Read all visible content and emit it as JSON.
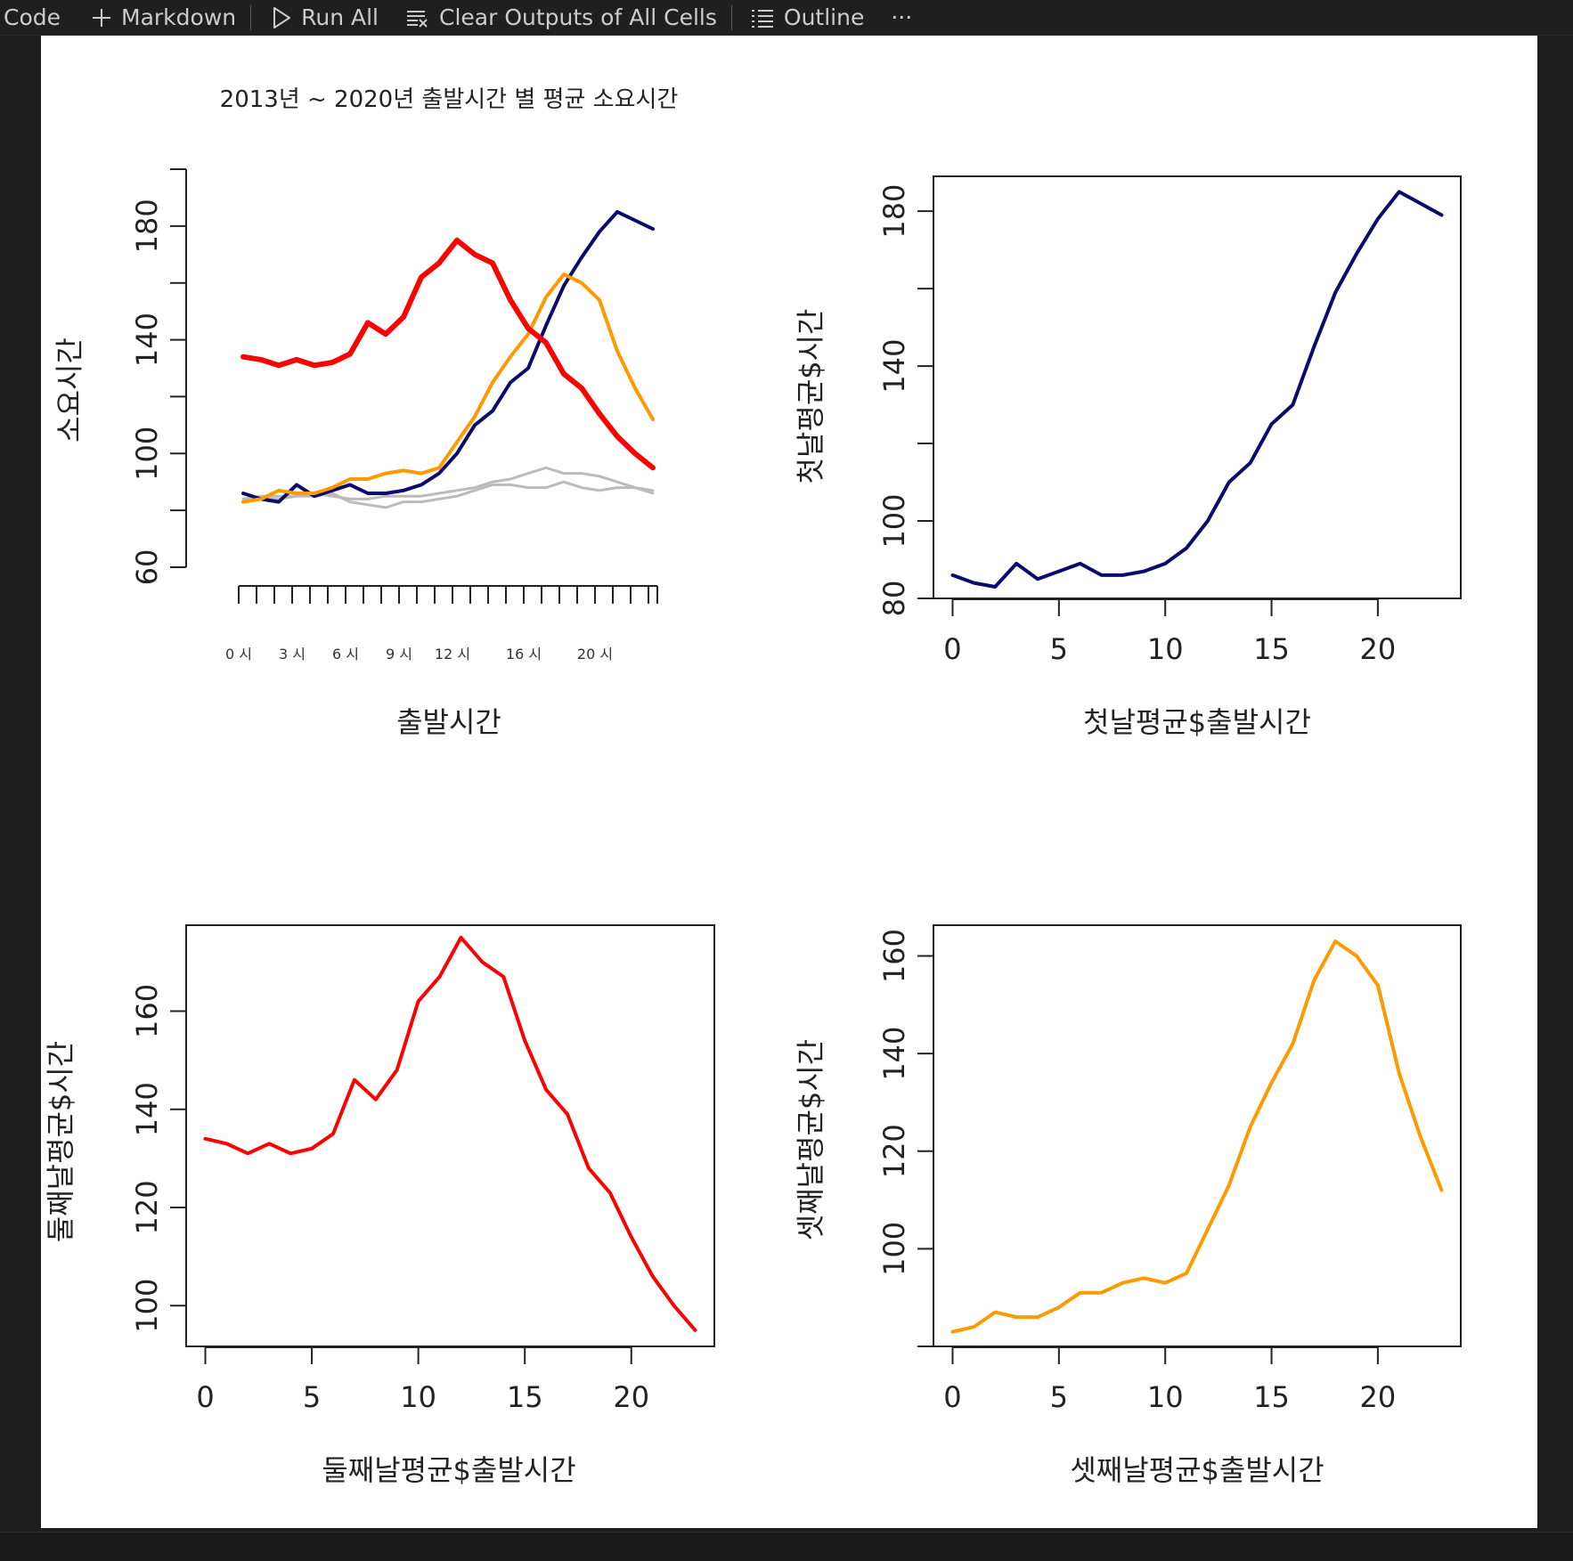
{
  "toolbar": {
    "code_label": "Code",
    "markdown_label": "Markdown",
    "run_all_label": "Run All",
    "clear_outputs_label": "Clear Outputs of All Cells",
    "outline_label": "Outline",
    "more_label": "···",
    "icons": [
      "plus-icon",
      "play-icon",
      "clear-outputs-icon",
      "outline-list-icon",
      "ellipsis-icon"
    ]
  },
  "colors": {
    "navy": "#0a0a6e",
    "red": "#ff0000",
    "orange": "#ff9900",
    "gray": "#bbbbbb"
  },
  "chart_data": [
    {
      "type": "line",
      "title": "2013년 ~ 2020년 출발시간 별 평균 소요시간",
      "xlabel": "출발시간",
      "ylabel": "소요시간",
      "x": [
        0,
        1,
        2,
        3,
        4,
        5,
        6,
        7,
        8,
        9,
        10,
        11,
        12,
        13,
        14,
        15,
        16,
        17,
        18,
        19,
        20,
        21,
        22,
        23
      ],
      "x_tick_labels": [
        {
          "x": 0,
          "label": "0 시"
        },
        {
          "x": 3,
          "label": "3 시"
        },
        {
          "x": 6,
          "label": "6 시"
        },
        {
          "x": 9,
          "label": "9 시"
        },
        {
          "x": 12,
          "label": "12 시"
        },
        {
          "x": 16,
          "label": "16 시"
        },
        {
          "x": 20,
          "label": "20 시"
        }
      ],
      "ylim": [
        60,
        200
      ],
      "y_ticks": [
        60,
        100,
        140,
        180
      ],
      "series": [
        {
          "values": [
            86,
            84,
            83,
            89,
            85,
            87,
            89,
            86,
            86,
            87,
            89,
            93,
            100,
            110,
            115,
            125,
            130,
            145,
            159,
            169,
            178,
            185,
            182,
            179
          ],
          "color": "#0a0a6e",
          "width": 4
        },
        {
          "values": [
            134,
            133,
            131,
            133,
            131,
            132,
            135,
            146,
            142,
            148,
            162,
            167,
            175,
            170,
            167,
            154,
            144,
            139,
            128,
            123,
            114,
            106,
            100,
            95
          ],
          "color": "#ff0000",
          "width": 6
        },
        {
          "values": [
            83,
            84,
            87,
            86,
            86,
            88,
            91,
            91,
            93,
            94,
            93,
            95,
            104,
            113,
            125,
            134,
            142,
            155,
            163,
            160,
            154,
            136,
            123,
            112
          ],
          "color": "#ff9900",
          "width": 4
        },
        {
          "values": [
            84,
            85,
            85,
            85,
            86,
            85,
            84,
            84,
            85,
            85,
            85,
            86,
            87,
            88,
            90,
            91,
            93,
            95,
            93,
            93,
            92,
            90,
            88,
            86
          ],
          "color": "#bbbbbb",
          "width": 3
        },
        {
          "values": [
            83,
            84,
            84,
            85,
            85,
            86,
            83,
            82,
            81,
            83,
            83,
            84,
            85,
            87,
            89,
            89,
            88,
            88,
            90,
            88,
            87,
            88,
            88,
            87
          ],
          "color": "#bbbbbb",
          "width": 3
        }
      ]
    },
    {
      "type": "line",
      "xlabel": "첫날평균$출발시간",
      "ylabel": "첫날평균$시간",
      "x": [
        0,
        1,
        2,
        3,
        4,
        5,
        6,
        7,
        8,
        9,
        10,
        11,
        12,
        13,
        14,
        15,
        16,
        17,
        18,
        19,
        20,
        21,
        22,
        23
      ],
      "xlim": [
        -0.9,
        23.9
      ],
      "x_ticks": [
        0,
        5,
        10,
        15,
        20
      ],
      "ylim": [
        80,
        189
      ],
      "y_ticks": [
        80,
        100,
        140,
        180
      ],
      "series": [
        {
          "values": [
            86,
            84,
            83,
            89,
            85,
            87,
            89,
            86,
            86,
            87,
            89,
            93,
            100,
            110,
            115,
            125,
            130,
            145,
            159,
            169,
            178,
            185,
            182,
            179
          ],
          "color": "#0a0a6e"
        }
      ]
    },
    {
      "type": "line",
      "xlabel": "둘째날평균$출발시간",
      "ylabel": "둘째날평균$시간",
      "x": [
        0,
        1,
        2,
        3,
        4,
        5,
        6,
        7,
        8,
        9,
        10,
        11,
        12,
        13,
        14,
        15,
        16,
        17,
        18,
        19,
        20,
        21,
        22,
        23
      ],
      "xlim": [
        -0.9,
        23.9
      ],
      "x_ticks": [
        0,
        5,
        10,
        15,
        20
      ],
      "ylim": [
        91.7,
        177.5
      ],
      "y_ticks": [
        100,
        120,
        140,
        160
      ],
      "series": [
        {
          "values": [
            134,
            133,
            131,
            133,
            131,
            132,
            135,
            146,
            142,
            148,
            162,
            167,
            175,
            170,
            167,
            154,
            144,
            139,
            128,
            123,
            114,
            106,
            100,
            95
          ],
          "color": "#ff0000"
        }
      ]
    },
    {
      "type": "line",
      "xlabel": "셋째날평균$출발시간",
      "ylabel": "셋째날평균$시간",
      "x": [
        0,
        1,
        2,
        3,
        4,
        5,
        6,
        7,
        8,
        9,
        10,
        11,
        12,
        13,
        14,
        15,
        16,
        17,
        18,
        19,
        20,
        21,
        22,
        23
      ],
      "xlim": [
        -0.9,
        23.9
      ],
      "x_ticks": [
        0,
        5,
        10,
        15,
        20
      ],
      "ylim": [
        80,
        166.3
      ],
      "y_ticks": [
        100,
        120,
        140,
        160
      ],
      "series": [
        {
          "values": [
            83,
            84,
            87,
            86,
            86,
            88,
            91,
            91,
            93,
            94,
            93,
            95,
            104,
            113,
            125,
            134,
            142,
            155,
            163,
            160,
            154,
            136,
            123,
            112
          ],
          "color": "#ff9900"
        }
      ]
    }
  ]
}
